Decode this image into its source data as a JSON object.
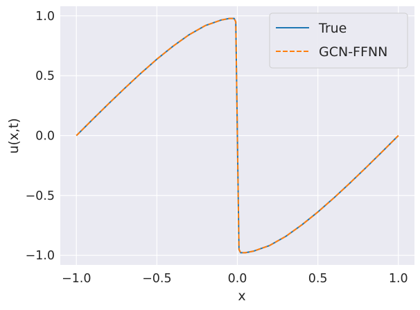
{
  "chart_data": {
    "type": "line",
    "title": "",
    "xlabel": "x",
    "ylabel": "u(x,t)",
    "xlim": [
      -1.1,
      1.1
    ],
    "ylim": [
      -1.08,
      1.08
    ],
    "xticks": [
      -1.0,
      -0.5,
      0.0,
      0.5,
      1.0
    ],
    "xtick_labels": [
      "−1.0",
      "−0.5",
      "0.0",
      "0.5",
      "1.0"
    ],
    "yticks": [
      -1.0,
      -0.5,
      0.0,
      0.5,
      1.0
    ],
    "ytick_labels": [
      "−1.0",
      "−0.5",
      "0.0",
      "0.5",
      "1.0"
    ],
    "grid": true,
    "legend_position": "top-right",
    "series": [
      {
        "name": "True",
        "color": "#1f77b4",
        "linestyle": "solid",
        "x": [
          -1.0,
          -0.9,
          -0.8,
          -0.7,
          -0.6,
          -0.5,
          -0.4,
          -0.3,
          -0.2,
          -0.1,
          -0.05,
          -0.02,
          -0.01,
          -0.005,
          0.0,
          0.005,
          0.01,
          0.02,
          0.05,
          0.1,
          0.2,
          0.3,
          0.4,
          0.5,
          0.6,
          0.7,
          0.8,
          0.9,
          1.0
        ],
        "y": [
          0.0,
          0.134,
          0.266,
          0.395,
          0.52,
          0.638,
          0.746,
          0.842,
          0.918,
          0.965,
          0.978,
          0.978,
          0.95,
          0.5,
          0.0,
          -0.5,
          -0.95,
          -0.978,
          -0.978,
          -0.965,
          -0.918,
          -0.842,
          -0.746,
          -0.638,
          -0.52,
          -0.395,
          -0.266,
          -0.134,
          0.0
        ]
      },
      {
        "name": "GCN-FFNN",
        "color": "#ff7f0e",
        "linestyle": "dashed",
        "x": [
          -1.0,
          -0.9,
          -0.8,
          -0.7,
          -0.6,
          -0.5,
          -0.4,
          -0.3,
          -0.2,
          -0.1,
          -0.05,
          -0.02,
          -0.01,
          -0.005,
          0.0,
          0.005,
          0.01,
          0.02,
          0.05,
          0.1,
          0.2,
          0.3,
          0.4,
          0.5,
          0.6,
          0.7,
          0.8,
          0.9,
          1.0
        ],
        "y": [
          0.0,
          0.134,
          0.266,
          0.395,
          0.52,
          0.638,
          0.746,
          0.842,
          0.918,
          0.965,
          0.978,
          0.978,
          0.95,
          0.5,
          0.0,
          -0.5,
          -0.95,
          -0.978,
          -0.978,
          -0.965,
          -0.918,
          -0.842,
          -0.746,
          -0.638,
          -0.52,
          -0.395,
          -0.266,
          -0.134,
          0.0
        ]
      }
    ]
  }
}
